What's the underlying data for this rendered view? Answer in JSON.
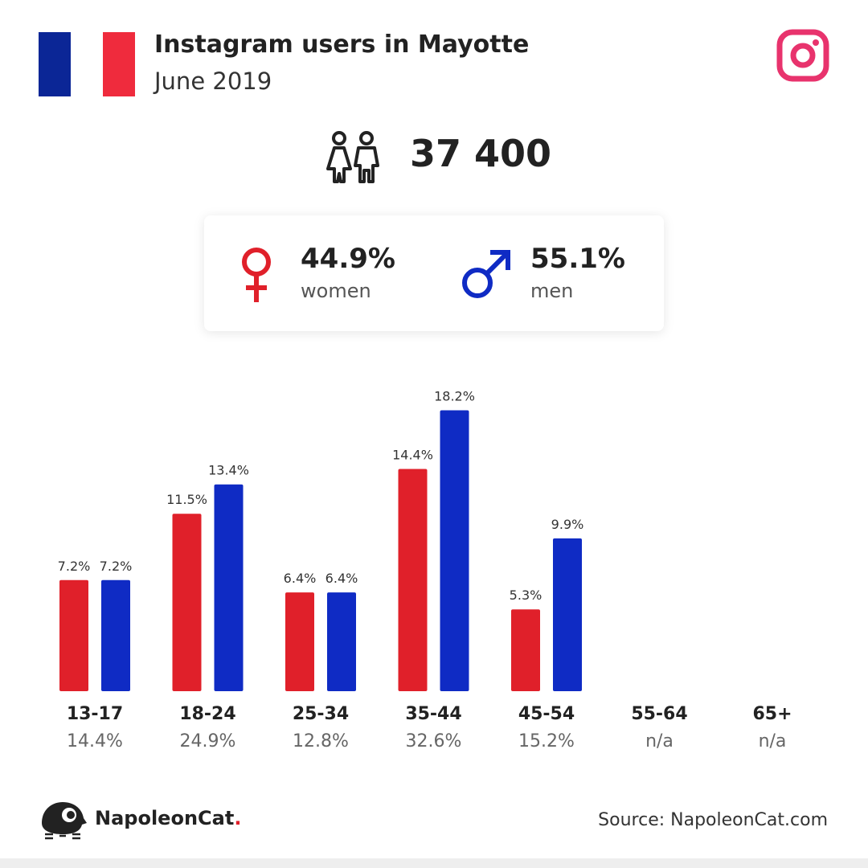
{
  "header": {
    "title": "Instagram users in Mayotte",
    "subtitle": "June 2019"
  },
  "flag": {
    "colors": [
      "#0b2696",
      "#ffffff",
      "#ef2b3d"
    ]
  },
  "icons": {
    "brand": "instagram-icon",
    "users": "users-icon",
    "female": "female-symbol-icon",
    "male": "male-symbol-icon",
    "logo": "napoleoncat-logo-icon"
  },
  "summary": {
    "total_users": "37 400",
    "women_pct": "44.9%",
    "women_label": "women",
    "men_pct": "55.1%",
    "men_label": "men"
  },
  "colors": {
    "women": "#e0202a",
    "men": "#0f2bc4",
    "instagram": "#e8336d"
  },
  "chart_data": {
    "type": "bar",
    "categories": [
      "13-17",
      "18-24",
      "25-34",
      "35-44",
      "45-54",
      "55-64",
      "65+"
    ],
    "series": [
      {
        "values": [
          7.2,
          11.5,
          6.4,
          14.4,
          5.3,
          null,
          null
        ],
        "labels": [
          "7.2%",
          "11.5%",
          "6.4%",
          "14.4%",
          "5.3%",
          "",
          ""
        ]
      },
      {
        "values": [
          7.2,
          13.4,
          6.4,
          18.2,
          9.9,
          null,
          null
        ],
        "labels": [
          "7.2%",
          "13.4%",
          "6.4%",
          "18.2%",
          "9.9%",
          "",
          ""
        ]
      }
    ],
    "totals": [
      "14.4%",
      "24.9%",
      "12.8%",
      "32.6%",
      "15.2%",
      "n/a",
      "n/a"
    ],
    "ylim": [
      0,
      20
    ],
    "grid": false,
    "legend": "none"
  },
  "footer": {
    "brand_name": "NapoleonCat",
    "brand_dot": ".",
    "source": "Source: NapoleonCat.com"
  }
}
